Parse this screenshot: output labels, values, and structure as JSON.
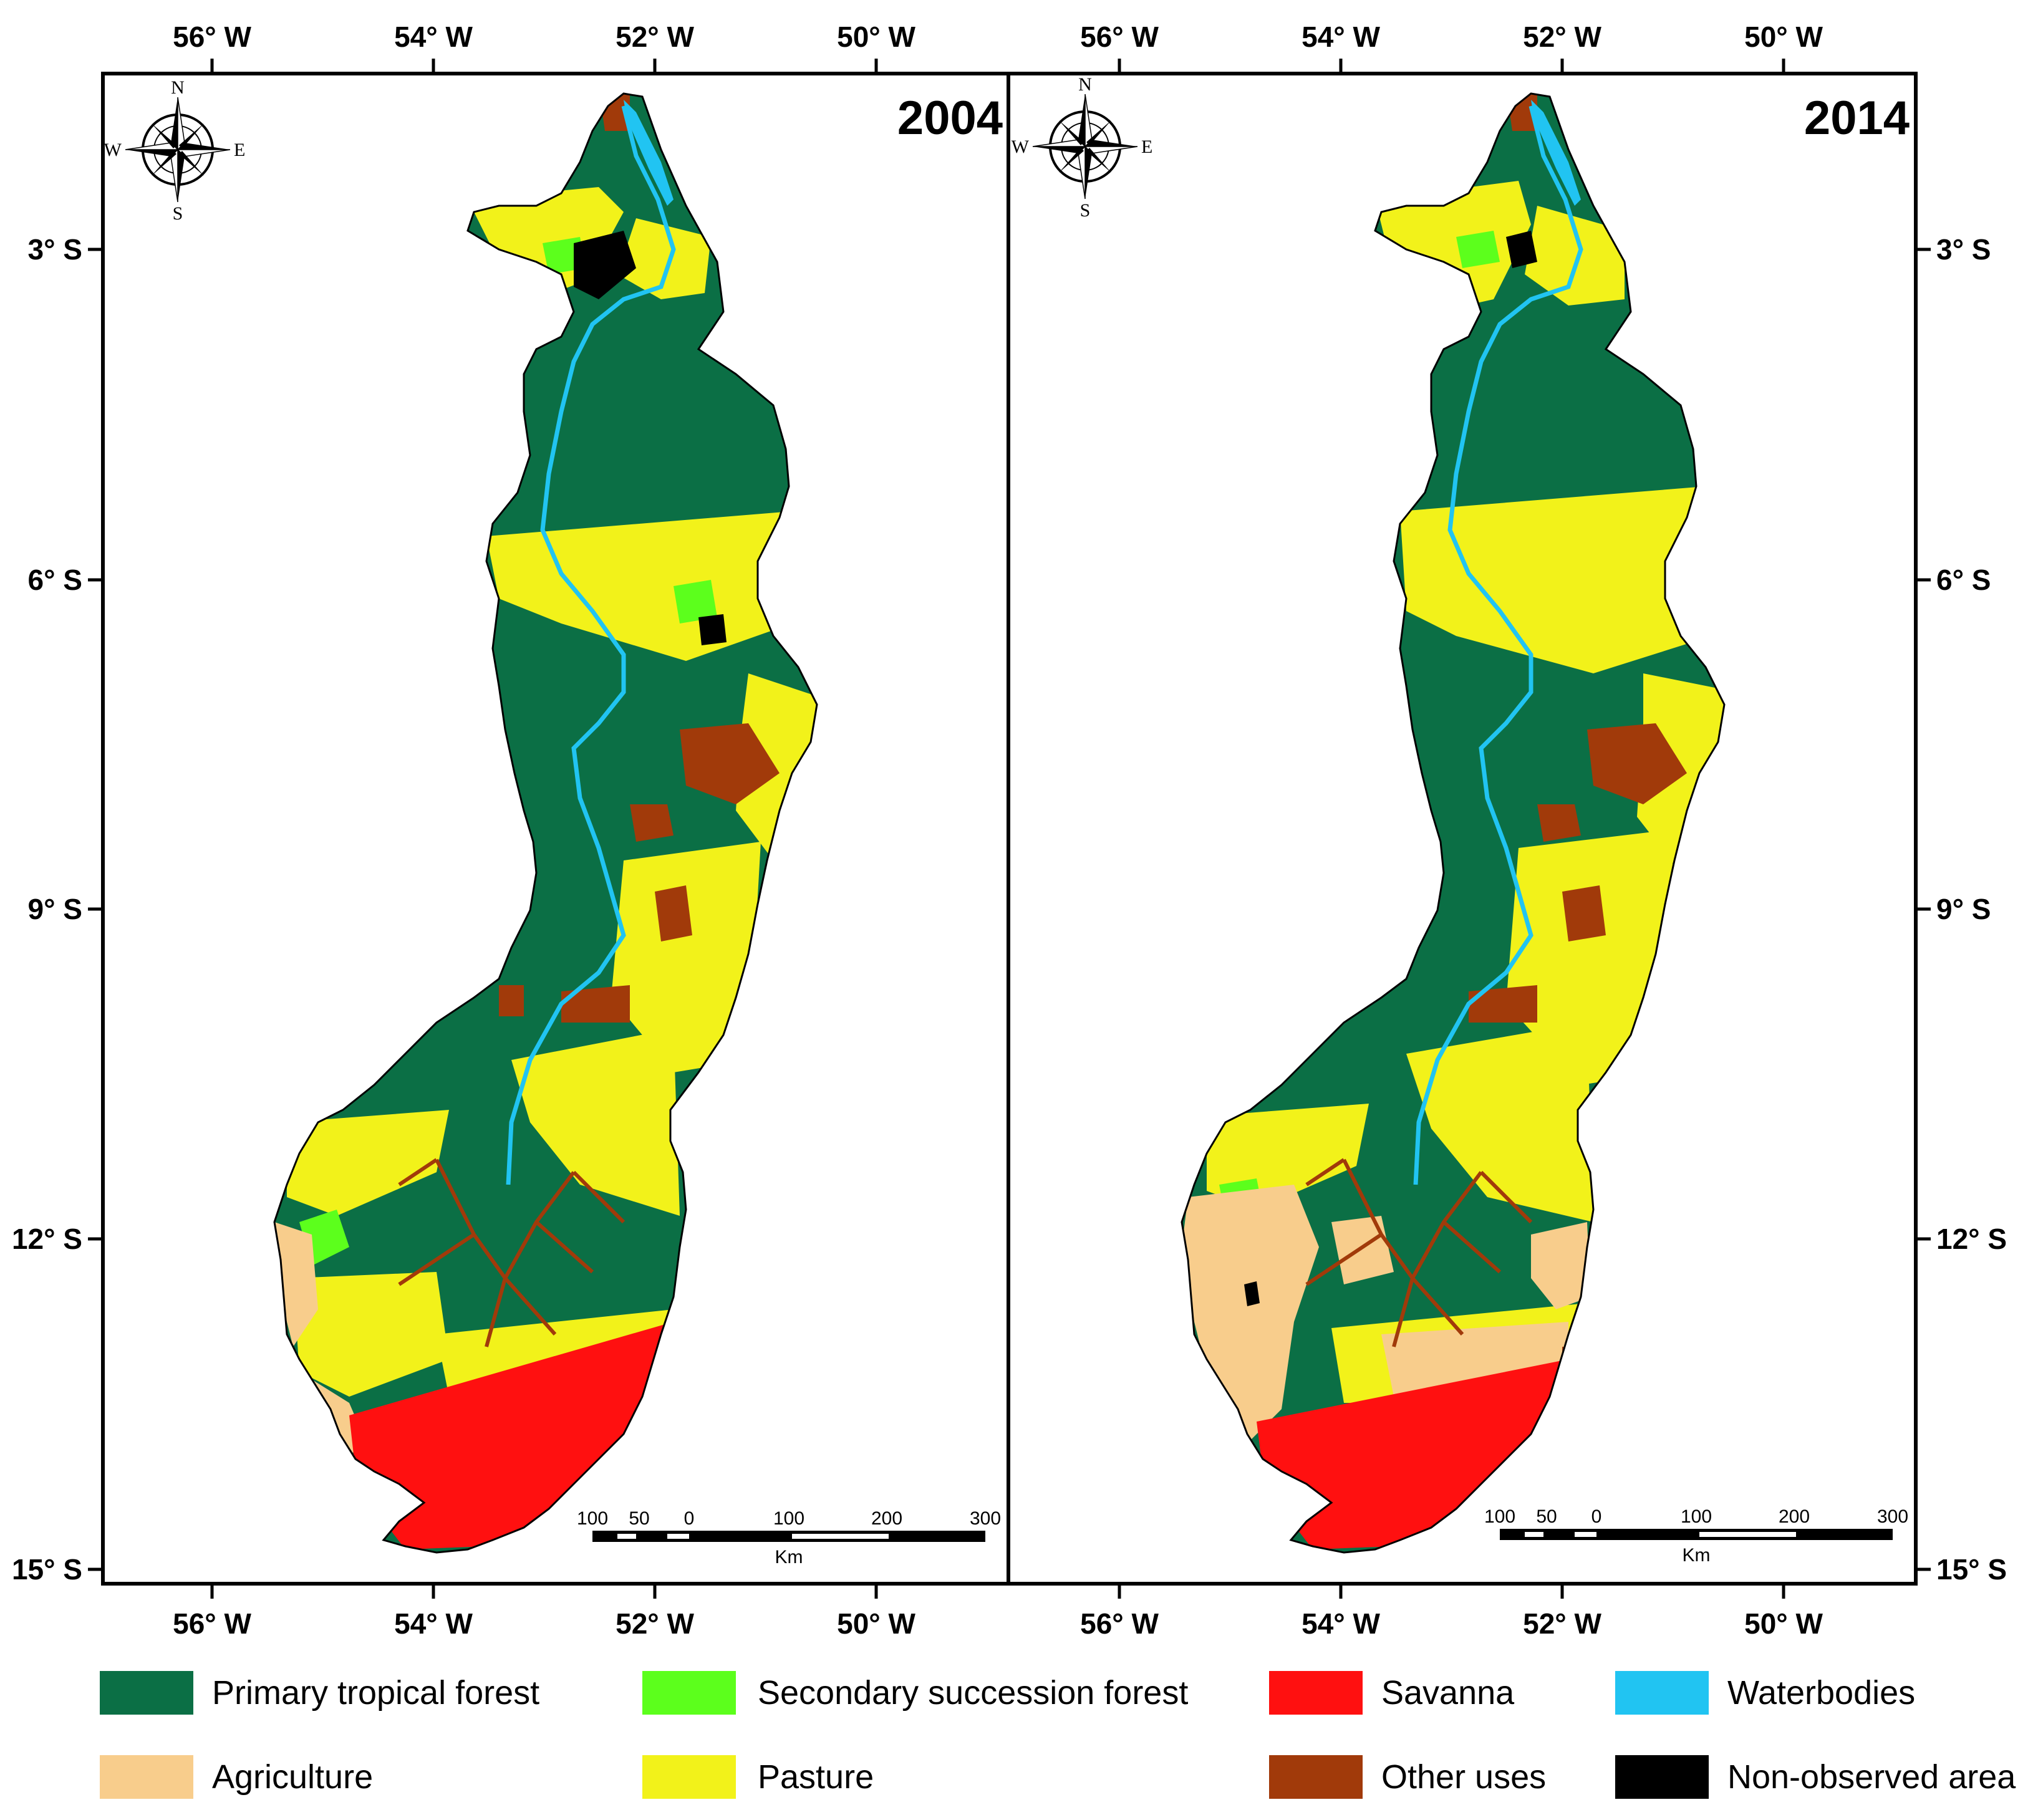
{
  "panels": [
    {
      "year": "2004"
    },
    {
      "year": "2014"
    }
  ],
  "axes": {
    "x_ticks": [
      "56° W",
      "54° W",
      "52° W",
      "50° W"
    ],
    "y_ticks": [
      "3° S",
      "6° S",
      "9° S",
      "12° S",
      "15° S"
    ]
  },
  "compass": {
    "n": "N",
    "s": "S",
    "e": "E",
    "w": "W"
  },
  "scale_bar": {
    "ticks": [
      "100",
      "50",
      "0",
      "100",
      "200",
      "300"
    ],
    "unit": "Km"
  },
  "legend": [
    {
      "label": "Primary tropical forest",
      "color": "#0b6f45"
    },
    {
      "label": "Secondary succession forest",
      "color": "#5cff1c"
    },
    {
      "label": "Savanna",
      "color": "#ff1010"
    },
    {
      "label": "Waterbodies",
      "color": "#21c4f2"
    },
    {
      "label": "Agriculture",
      "color": "#f8cd8c"
    },
    {
      "label": "Pasture",
      "color": "#f2f21a"
    },
    {
      "label": "Other uses",
      "color": "#a13a0a"
    },
    {
      "label": "Non-observed area",
      "color": "#000000"
    }
  ]
}
